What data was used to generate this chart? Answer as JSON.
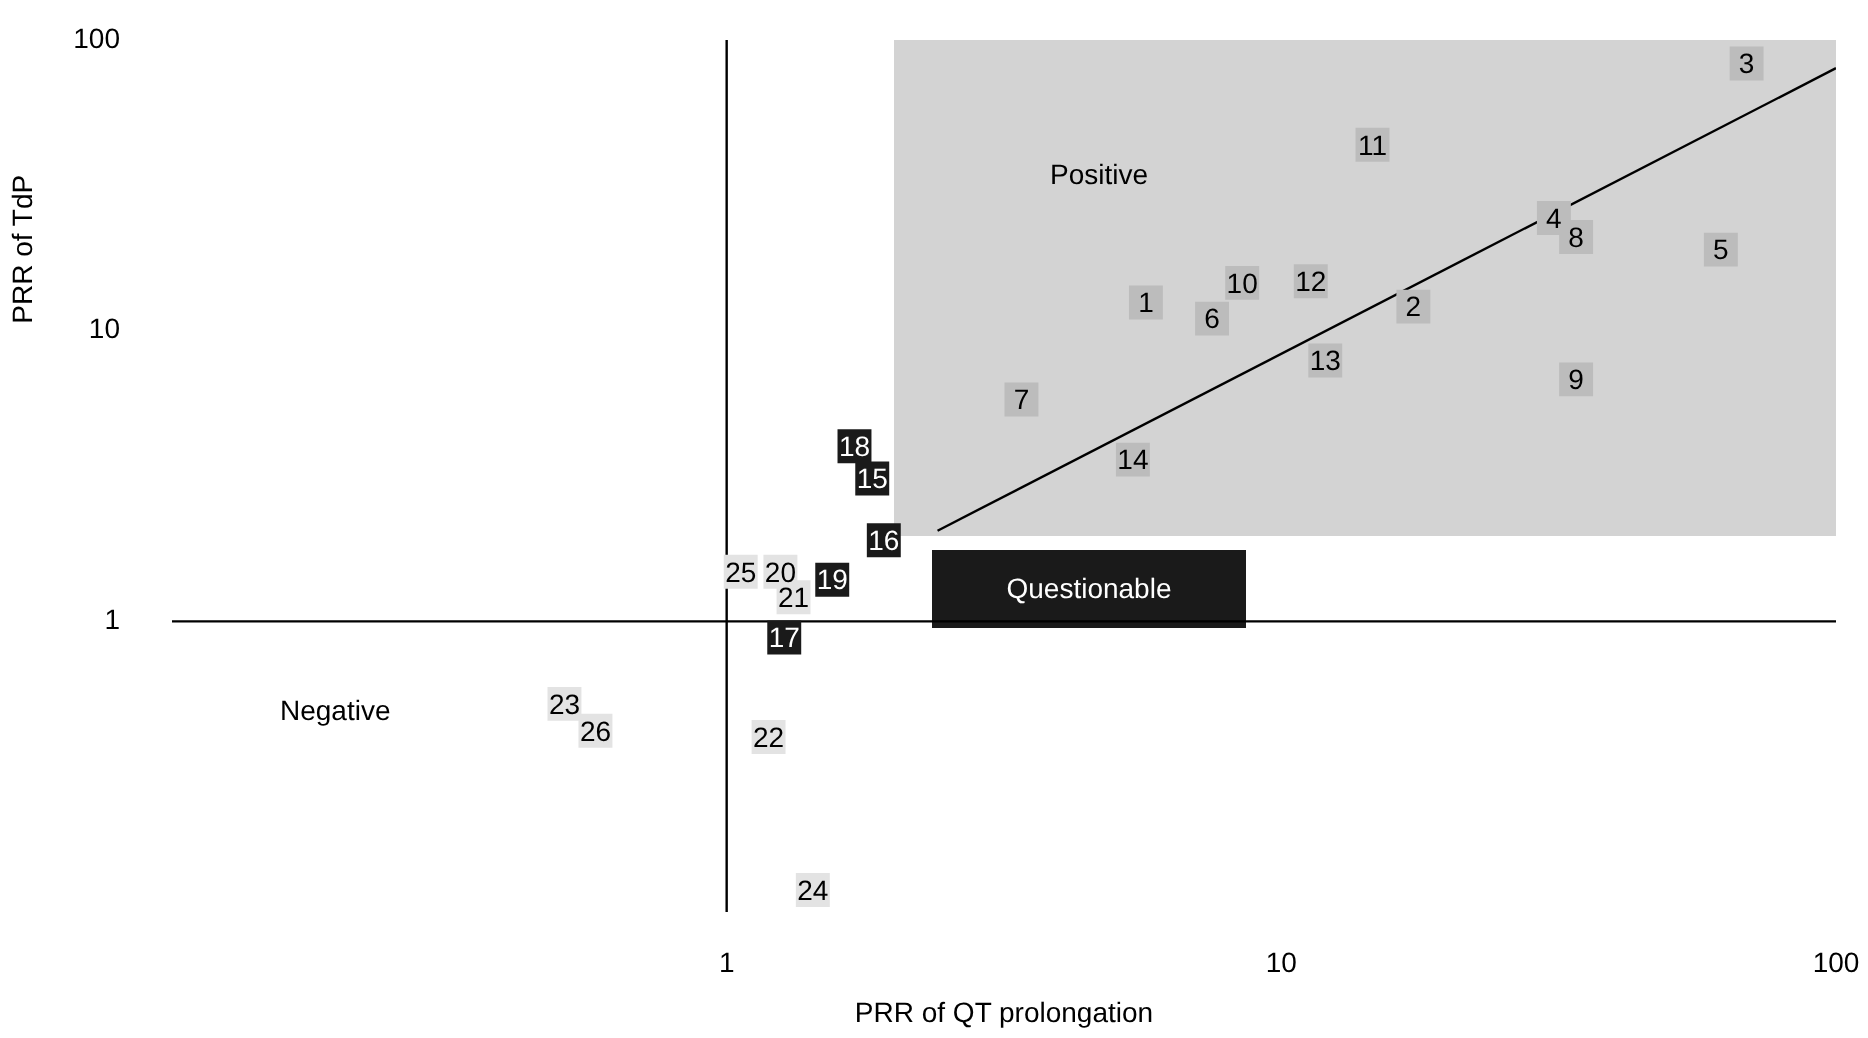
{
  "chart_data": {
    "type": "scatter",
    "xlabel": "PRR of QT prolongation",
    "ylabel": "PRR of TdP",
    "log": "xy",
    "xlim": [
      0.1,
      100
    ],
    "ylim": [
      0.1,
      100
    ],
    "marker": "square",
    "xticks": [
      1,
      10,
      100
    ],
    "yticks": [
      1,
      10,
      100
    ],
    "series": [
      {
        "name": "1",
        "color": "#bcbcbc",
        "x": [
          5.7
        ],
        "values": [
          12.5
        ]
      },
      {
        "name": "2",
        "color": "#bcbcbc",
        "x": [
          17.3
        ],
        "values": [
          12.1
        ]
      },
      {
        "name": "3",
        "color": "#bcbcbc",
        "x": [
          69
        ],
        "values": [
          83
        ]
      },
      {
        "name": "4",
        "color": "#bcbcbc",
        "x": [
          31
        ],
        "values": [
          24.4
        ]
      },
      {
        "name": "5",
        "color": "#bcbcbc",
        "x": [
          62
        ],
        "values": [
          19
        ]
      },
      {
        "name": "6",
        "color": "#bcbcbc",
        "x": [
          7.5
        ],
        "values": [
          11
        ]
      },
      {
        "name": "7",
        "color": "#bcbcbc",
        "x": [
          3.4
        ],
        "values": [
          5.8
        ]
      },
      {
        "name": "8",
        "color": "#bcbcbc",
        "x": [
          34
        ],
        "values": [
          21
        ]
      },
      {
        "name": "9",
        "color": "#bcbcbc",
        "x": [
          34
        ],
        "values": [
          6.8
        ]
      },
      {
        "name": "10",
        "color": "#bcbcbc",
        "x": [
          8.5
        ],
        "values": [
          14.6
        ]
      },
      {
        "name": "11",
        "color": "#bcbcbc",
        "x": [
          14.6
        ],
        "values": [
          43.6
        ]
      },
      {
        "name": "12",
        "color": "#bcbcbc",
        "x": [
          11.3
        ],
        "values": [
          14.8
        ]
      },
      {
        "name": "13",
        "color": "#bcbcbc",
        "x": [
          12
        ],
        "values": [
          7.9
        ]
      },
      {
        "name": "14",
        "color": "#bcbcbc",
        "x": [
          5.4
        ],
        "values": [
          3.6
        ]
      },
      {
        "name": "15",
        "color": "#1a1a1a",
        "x": [
          1.83
        ],
        "values": [
          3.1
        ]
      },
      {
        "name": "16",
        "color": "#1a1a1a",
        "x": [
          1.92
        ],
        "values": [
          1.9
        ]
      },
      {
        "name": "17",
        "color": "#1a1a1a",
        "x": [
          1.27
        ],
        "values": [
          0.88
        ]
      },
      {
        "name": "18",
        "color": "#1a1a1a",
        "x": [
          1.7
        ],
        "values": [
          4.0
        ]
      },
      {
        "name": "19",
        "color": "#1a1a1a",
        "x": [
          1.55
        ],
        "values": [
          1.39
        ]
      },
      {
        "name": "20",
        "color": "#e3e3e3",
        "x": [
          1.25
        ],
        "values": [
          1.48
        ]
      },
      {
        "name": "21",
        "color": "#e3e3e3",
        "x": [
          1.32
        ],
        "values": [
          1.21
        ]
      },
      {
        "name": "22",
        "color": "#e3e3e3",
        "x": [
          1.19
        ],
        "values": [
          0.4
        ]
      },
      {
        "name": "23",
        "color": "#e3e3e3",
        "x": [
          0.51
        ],
        "values": [
          0.52
        ]
      },
      {
        "name": "24",
        "color": "#e3e3e3",
        "x": [
          1.43
        ],
        "values": [
          0.119
        ]
      },
      {
        "name": "25",
        "color": "#e3e3e3",
        "x": [
          1.06
        ],
        "values": [
          1.48
        ]
      },
      {
        "name": "26",
        "color": "#e3e3e3",
        "x": [
          0.58
        ],
        "values": [
          0.42
        ]
      },
      {
        "type": "line",
        "marker": "none",
        "color": "#000000",
        "x": [
          2.4,
          100
        ],
        "values": [
          2.05,
          80
        ]
      }
    ],
    "annotations": [
      "Positive",
      "Questionable",
      "Negative"
    ]
  }
}
